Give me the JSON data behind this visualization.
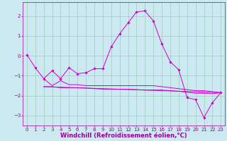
{
  "xlabel": "Windchill (Refroidissement éolien,°C)",
  "bg_color": "#cce8f0",
  "line_color": "#cc00cc",
  "grid_color": "#99ccbb",
  "xlim": [
    -0.5,
    23.5
  ],
  "ylim": [
    -3.5,
    2.7
  ],
  "yticks": [
    -3,
    -2,
    -1,
    0,
    1,
    2
  ],
  "xticks": [
    0,
    1,
    2,
    3,
    4,
    5,
    6,
    7,
    8,
    9,
    10,
    11,
    12,
    13,
    14,
    15,
    16,
    17,
    18,
    19,
    20,
    21,
    22,
    23
  ],
  "line1_x": [
    0,
    1,
    2,
    3,
    4,
    5,
    6,
    7,
    8,
    9,
    10,
    11,
    12,
    13,
    14,
    15,
    16,
    17,
    18,
    19,
    20,
    21,
    22,
    23
  ],
  "line1_y": [
    0.05,
    -0.6,
    -1.15,
    -0.75,
    -1.15,
    -0.6,
    -0.9,
    -0.85,
    -0.65,
    -0.65,
    0.45,
    1.1,
    1.65,
    2.2,
    2.25,
    1.75,
    0.6,
    -0.3,
    -0.7,
    -2.1,
    -2.2,
    -3.1,
    -2.35,
    -1.85
  ],
  "line2_x": [
    2,
    3,
    4,
    5,
    6,
    7,
    8,
    9,
    10,
    11,
    12,
    13,
    14,
    15,
    16,
    17,
    18,
    19,
    20,
    21,
    22,
    23
  ],
  "line2_y": [
    -1.15,
    -1.5,
    -1.25,
    -1.45,
    -1.45,
    -1.5,
    -1.5,
    -1.5,
    -1.5,
    -1.5,
    -1.5,
    -1.5,
    -1.5,
    -1.5,
    -1.55,
    -1.6,
    -1.65,
    -1.7,
    -1.75,
    -1.75,
    -1.8,
    -1.85
  ],
  "line3_x": [
    2,
    3,
    4,
    5,
    6,
    7,
    8,
    9,
    10,
    11,
    12,
    13,
    14,
    15,
    16,
    17,
    18,
    19,
    20,
    21,
    22,
    23
  ],
  "line3_y": [
    -1.55,
    -1.55,
    -1.6,
    -1.6,
    -1.6,
    -1.62,
    -1.65,
    -1.67,
    -1.68,
    -1.68,
    -1.68,
    -1.7,
    -1.72,
    -1.72,
    -1.72,
    -1.75,
    -1.78,
    -1.83,
    -1.88,
    -1.88,
    -1.9,
    -1.85
  ],
  "line4_x": [
    2,
    23
  ],
  "line4_y": [
    -1.55,
    -1.85
  ],
  "font_color": "#990099",
  "tick_fontsize": 5,
  "label_fontsize": 6
}
